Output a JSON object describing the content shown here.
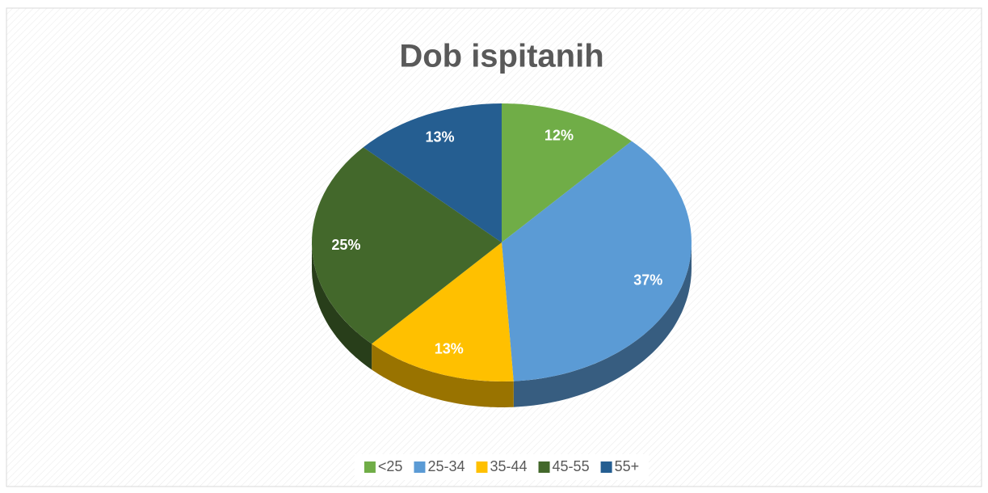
{
  "chart_data": {
    "type": "pie",
    "title": "Dob ispitanih",
    "categories": [
      "<25",
      "25-34",
      "35-44",
      "45-55",
      "55+"
    ],
    "values": [
      12,
      37,
      13,
      25,
      13
    ],
    "value_labels": [
      "12%",
      "37%",
      "13%",
      "25%",
      "13%"
    ],
    "colors": [
      "#70ad47",
      "#5b9bd5",
      "#ffc000",
      "#43682b",
      "#255e91"
    ],
    "legend": "bottom"
  }
}
